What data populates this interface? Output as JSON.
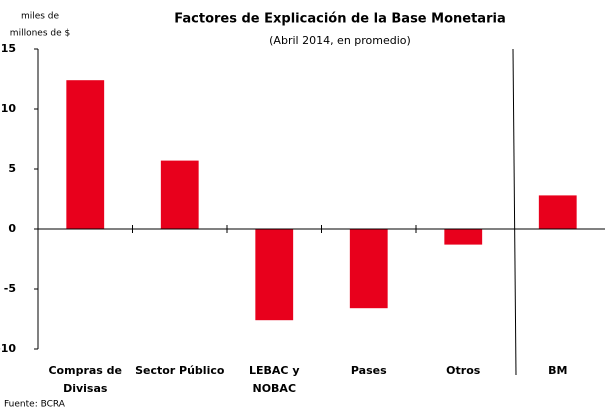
{
  "chart_data": {
    "type": "bar",
    "title": "Factores de Explicación de la Base Monetaria",
    "subtitle": "(Abril 2014, en promedio)",
    "y_label": [
      "miles de",
      "millones de $"
    ],
    "source": "Fuente: BCRA",
    "categories": [
      [
        "Compras de",
        "Divisas"
      ],
      [
        "Sector Público"
      ],
      [
        "LEBAC y",
        "NOBAC"
      ],
      [
        "Pases"
      ],
      [
        "Otros"
      ],
      [
        "BM"
      ]
    ],
    "values": [
      12.4,
      5.7,
      -7.6,
      -6.6,
      -1.3,
      2.8
    ],
    "color": "#e8001c",
    "ylim": [
      -10,
      15
    ],
    "yticks": [
      -10,
      -5,
      0,
      5,
      10,
      15
    ],
    "grid": false
  }
}
